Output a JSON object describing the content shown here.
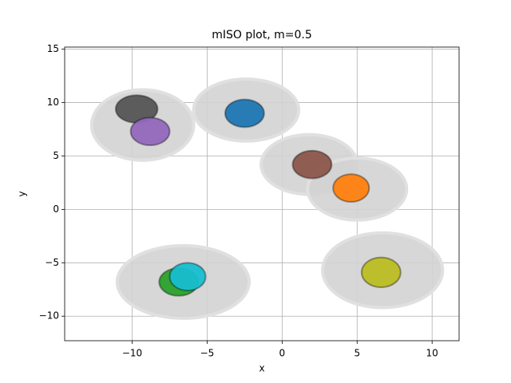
{
  "chart_data": {
    "type": "scatter",
    "title": "mISO plot, m=0.5",
    "x_label": "x",
    "y_label": "y",
    "xlim": [
      -14.5,
      11.8
    ],
    "ylim": [
      -12.3,
      15.2
    ],
    "xticks": [
      {
        "value": -10,
        "label": "−10"
      },
      {
        "value": -5,
        "label": "−5"
      },
      0,
      5,
      10
    ],
    "yticks": [
      {
        "value": -10,
        "label": "−10"
      },
      {
        "value": -5,
        "label": "−5"
      },
      0,
      5,
      10,
      15
    ],
    "grid": true,
    "clusters": [
      {
        "color": "#d3d3d3",
        "x": -9.3,
        "y": 7.9,
        "x_spread": 3.4,
        "y_spread": 3.3
      },
      {
        "color": "#d3d3d3",
        "x": -2.4,
        "y": 9.3,
        "x_spread": 3.5,
        "y_spread": 2.9
      },
      {
        "color": "#d3d3d3",
        "x": 1.8,
        "y": 4.2,
        "x_spread": 3.2,
        "y_spread": 2.8
      },
      {
        "color": "#d3d3d3",
        "x": 5.0,
        "y": 1.9,
        "x_spread": 3.3,
        "y_spread": 2.9
      },
      {
        "color": "#d3d3d3",
        "x": -6.6,
        "y": -6.8,
        "x_spread": 4.4,
        "y_spread": 3.4
      },
      {
        "color": "#d3d3d3",
        "x": 6.7,
        "y": -5.7,
        "x_spread": 4.0,
        "y_spread": 3.5
      },
      {
        "color": "#555555",
        "x": -9.7,
        "y": 9.4,
        "x_spread": 1.4,
        "y_spread": 1.3
      },
      {
        "color": "#9467bd",
        "x": -8.8,
        "y": 7.3,
        "x_spread": 1.3,
        "y_spread": 1.3
      },
      {
        "color": "#1f77b4",
        "x": -2.5,
        "y": 9.0,
        "x_spread": 1.3,
        "y_spread": 1.3
      },
      {
        "color": "#8c564b",
        "x": 2.0,
        "y": 4.2,
        "x_spread": 1.3,
        "y_spread": 1.3
      },
      {
        "color": "#ff7f0e",
        "x": 4.6,
        "y": 2.0,
        "x_spread": 1.2,
        "y_spread": 1.3
      },
      {
        "color": "#2ca02c",
        "x": -6.9,
        "y": -6.8,
        "x_spread": 1.3,
        "y_spread": 1.3
      },
      {
        "color": "#17becf",
        "x": -6.3,
        "y": -6.3,
        "x_spread": 1.2,
        "y_spread": 1.3
      },
      {
        "color": "#bcbd22",
        "x": 6.6,
        "y": -5.9,
        "x_spread": 1.3,
        "y_spread": 1.4
      }
    ]
  }
}
